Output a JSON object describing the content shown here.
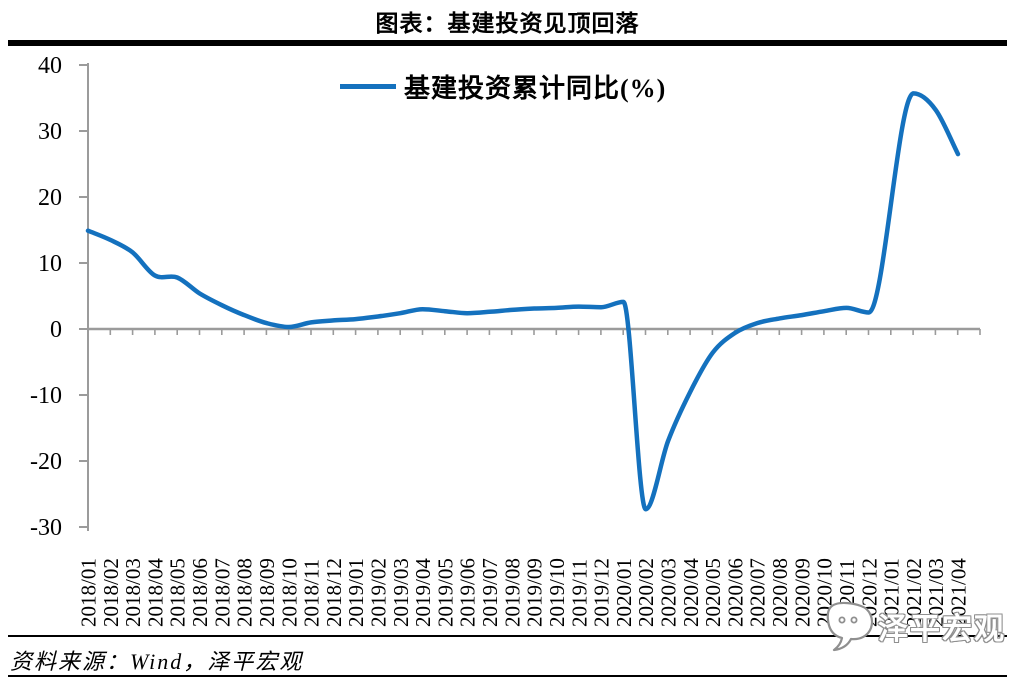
{
  "page": {
    "title": "图表：基建投资见顶回落",
    "source_note": "资料来源：Wind，泽平宏观",
    "watermark": "泽平宏观"
  },
  "colors": {
    "line_blue": "#1471BE",
    "axis_gray": "#9B9B9B",
    "divider_black": "#000000",
    "watermark_gray": "#8F8F8F",
    "text_black": "#000000"
  },
  "chart_data": {
    "type": "line",
    "title": "图表：基建投资见顶回落",
    "legend": [
      "基建投资累计同比(%)"
    ],
    "legend_position": "top-center",
    "grid": false,
    "xlabel": "",
    "ylabel": "",
    "ylim": [
      -30,
      40
    ],
    "yticks": [
      40,
      30,
      20,
      10,
      0,
      -10,
      -20,
      -30
    ],
    "x": [
      "2018/01",
      "2018/02",
      "2018/03",
      "2018/04",
      "2018/05",
      "2018/06",
      "2018/07",
      "2018/08",
      "2018/09",
      "2018/10",
      "2018/11",
      "2018/12",
      "2019/01",
      "2019/02",
      "2019/03",
      "2019/04",
      "2019/05",
      "2019/06",
      "2019/07",
      "2019/08",
      "2019/09",
      "2019/10",
      "2019/11",
      "2019/12",
      "2020/01",
      "2020/02",
      "2020/03",
      "2020/04",
      "2020/05",
      "2020/06",
      "2020/07",
      "2020/08",
      "2020/09",
      "2020/10",
      "2020/11",
      "2020/12",
      "2021/01",
      "2021/02",
      "2021/03",
      "2021/04"
    ],
    "series": [
      {
        "name": "基建投资累计同比(%)",
        "values": [
          14.9,
          13.5,
          11.6,
          8.1,
          7.8,
          5.4,
          3.6,
          2.1,
          0.9,
          0.3,
          1.0,
          1.3,
          1.5,
          1.9,
          2.4,
          3.0,
          2.7,
          2.4,
          2.6,
          2.9,
          3.1,
          3.2,
          3.4,
          3.3,
          4.1,
          -27.3,
          -17.0,
          -9.5,
          -3.6,
          -0.6,
          0.9,
          1.6,
          2.1,
          2.7,
          3.2,
          2.5,
          null,
          35.7,
          33.2,
          26.5
        ]
      }
    ]
  }
}
